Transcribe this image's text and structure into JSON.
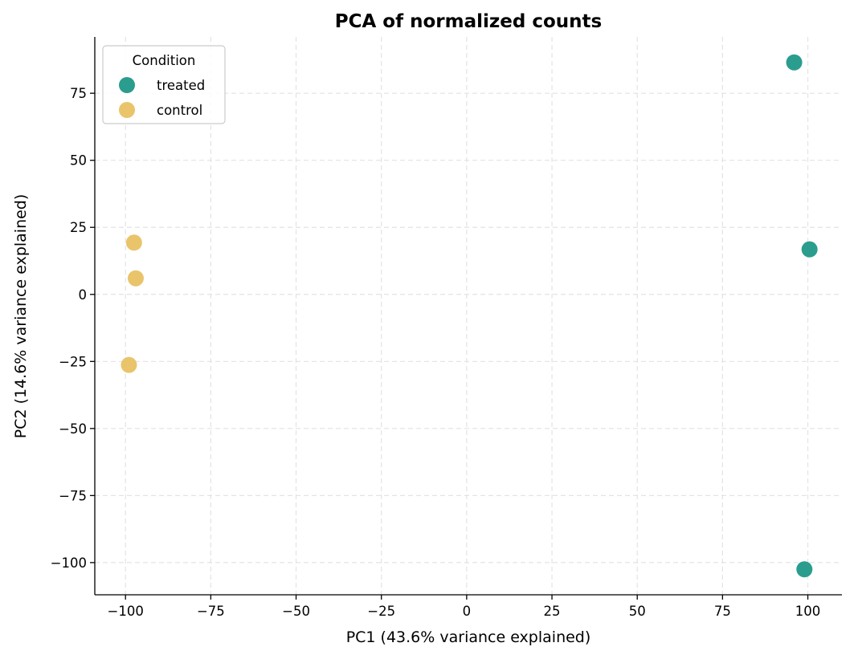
{
  "chart_data": {
    "type": "scatter",
    "title": "PCA of normalized counts",
    "xlabel": "PC1 (43.6% variance explained)",
    "ylabel": "PC2 (14.6% variance explained)",
    "xlim": [
      -109,
      110
    ],
    "ylim": [
      -112,
      96
    ],
    "xticks": [
      -100,
      -75,
      -50,
      -25,
      0,
      25,
      50,
      75,
      100
    ],
    "xtick_labels": [
      "−100",
      "−75",
      "−50",
      "−25",
      "0",
      "25",
      "50",
      "75",
      "100"
    ],
    "yticks": [
      -100,
      -75,
      -50,
      -25,
      0,
      25,
      50,
      75
    ],
    "ytick_labels": [
      "−100",
      "−75",
      "−50",
      "−25",
      "0",
      "25",
      "50",
      "75"
    ],
    "grid": true,
    "legend": {
      "title": "Condition",
      "placement": "top-left"
    },
    "series": [
      {
        "name": "treated",
        "color": "#2a9d8f",
        "points": [
          {
            "x": 96.0,
            "y": 86.5
          },
          {
            "x": 100.5,
            "y": 16.8
          },
          {
            "x": 99.0,
            "y": -102.5
          }
        ]
      },
      {
        "name": "control",
        "color": "#e9c46a",
        "points": [
          {
            "x": -97.5,
            "y": 19.3
          },
          {
            "x": -97.0,
            "y": 6.0
          },
          {
            "x": -99.0,
            "y": -26.3
          }
        ]
      }
    ]
  }
}
